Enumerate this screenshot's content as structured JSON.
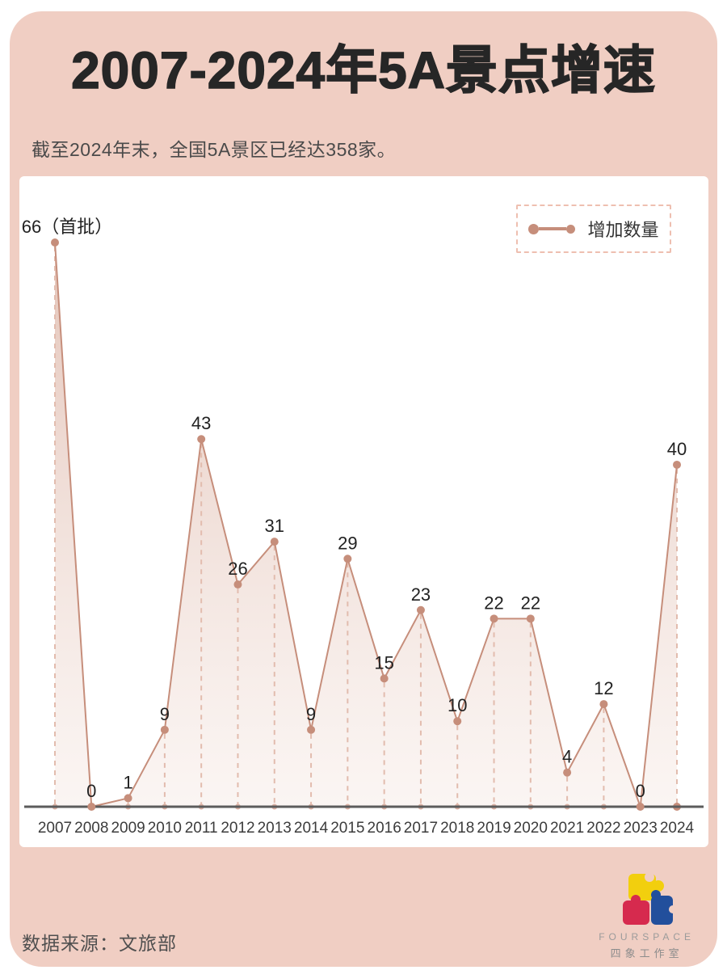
{
  "header": {
    "title": "2007-2024年5A景点增速",
    "subtitle": "截至2024年末，全国5A景区已经达358家。"
  },
  "legend": {
    "label": "增加数量"
  },
  "chart_data": {
    "type": "area",
    "title": "2007-2024年5A景点增速",
    "series_name": "增加数量",
    "categories": [
      "2007",
      "2008",
      "2009",
      "2010",
      "2011",
      "2012",
      "2013",
      "2014",
      "2015",
      "2016",
      "2017",
      "2018",
      "2019",
      "2020",
      "2021",
      "2022",
      "2023",
      "2024"
    ],
    "values": [
      66,
      0,
      1,
      9,
      43,
      26,
      31,
      9,
      29,
      15,
      23,
      10,
      22,
      22,
      4,
      12,
      0,
      40
    ],
    "point_labels": [
      "66（首批）",
      "0",
      "1",
      "9",
      "43",
      "26",
      "31",
      "9",
      "29",
      "15",
      "23",
      "10",
      "22",
      "22",
      "4",
      "12",
      "0",
      "40"
    ],
    "ylim": [
      0,
      66
    ],
    "xlabel": "",
    "ylabel": "",
    "grid": "dashed-droplines",
    "legend_position": "top-right",
    "colors": {
      "accent": "#c68e7b",
      "drop_line": "#e2bcae",
      "base_dot": "#ddb3a6",
      "axis": "#5c5c5c",
      "area_top": "rgba(198,132,108,0.48)",
      "area_bottom": "rgba(238,216,207,0.25)"
    }
  },
  "footer": {
    "source": "数据来源：文旅部",
    "logo_brand": "FOURSPACE",
    "logo_studio": "四象工作室"
  },
  "theme": {
    "background_pink": "#f0cec3",
    "card_white": "#ffffff",
    "title_color": "#262626"
  }
}
